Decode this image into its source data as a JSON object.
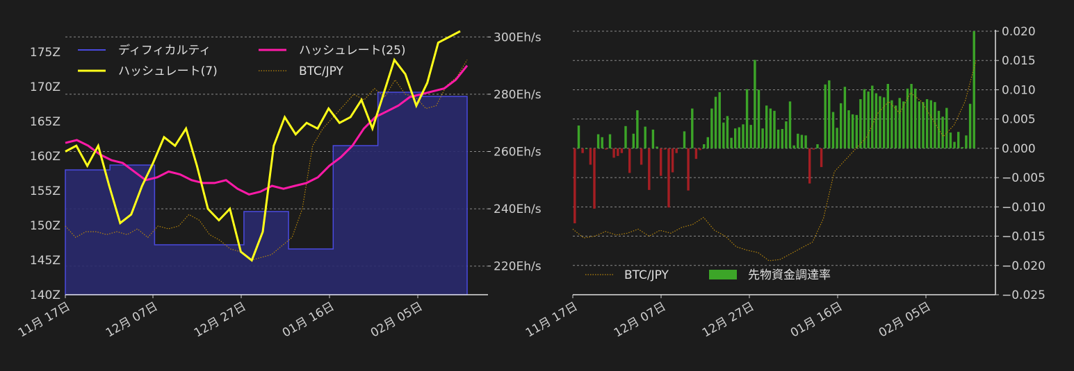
{
  "chart_data": [
    {
      "type": "line",
      "x_ticks": [
        "11月 17日",
        "12月 07日",
        "12月 27日",
        "01月 16日",
        "02月 05日"
      ],
      "y_left_ticks": [
        "140Z",
        "145Z",
        "150Z",
        "155Z",
        "160Z",
        "165Z",
        "170Z",
        "175Z"
      ],
      "y_right_ticks": [
        "220Eh/s",
        "240Eh/s",
        "260Eh/s",
        "280Eh/s",
        "300Eh/s"
      ],
      "ylim_left": [
        140,
        178
      ],
      "ylim_right": [
        210,
        302
      ],
      "legend": [
        {
          "label": "ディフィカルティ",
          "color": "#4a4adf"
        },
        {
          "label": "ハッシュレート(7)",
          "color": "#ffff1a"
        },
        {
          "label": "ハッシュレート(25)",
          "color": "#ff1aa8"
        },
        {
          "label": "BTC/JPY",
          "color": "#b8860b"
        }
      ],
      "series": [
        {
          "name": "ディフィカルティ",
          "axis": "left",
          "values": [
            158.0,
            158.7,
            147.2,
            147.2,
            152.0,
            146.6,
            161.5,
            169.2,
            168.6
          ]
        },
        {
          "name": "ハッシュレート(7)",
          "axis": "right",
          "values": [
            260,
            262,
            255,
            262,
            248,
            235,
            238,
            248,
            256,
            265,
            262,
            268,
            255,
            240,
            236,
            240,
            225,
            222,
            232,
            262,
            272,
            266,
            270,
            268,
            275,
            270,
            272,
            278,
            268,
            280,
            292,
            287,
            276,
            284,
            298,
            300,
            302
          ]
        },
        {
          "name": "ハッシュレート(25)",
          "axis": "right",
          "values": [
            263,
            264,
            262,
            259,
            257,
            256,
            253,
            250,
            251,
            253,
            252,
            250,
            249,
            249,
            250,
            247,
            245,
            246,
            248,
            247,
            248,
            249,
            251,
            255,
            258,
            262,
            268,
            272,
            274,
            276,
            279,
            280,
            281,
            282,
            285,
            290
          ]
        },
        {
          "name": "BTC/JPY",
          "axis": "right",
          "values": [
            234,
            230,
            232,
            232,
            231,
            232,
            231,
            233,
            230,
            234,
            233,
            234,
            238,
            236,
            231,
            229,
            226,
            225,
            222,
            223,
            224,
            227,
            230,
            240,
            262,
            268,
            272,
            276,
            280,
            278,
            282,
            279,
            285,
            280,
            279,
            275,
            276,
            283,
            286,
            292
          ]
        }
      ]
    },
    {
      "type": "bar",
      "x_ticks": [
        "11月 17日",
        "12月 07日",
        "12月 27日",
        "01月 16日",
        "02月 05日"
      ],
      "y_ticks": [
        "0.020",
        "0.015",
        "0.010",
        "0.005",
        "0.000",
        "−0.005",
        "−0.010",
        "−0.015",
        "−0.020",
        "−0.025"
      ],
      "ylim": [
        -0.025,
        0.02
      ],
      "legend": [
        {
          "label": "BTC/JPY",
          "color": "#b8860b"
        },
        {
          "label": "先物資金調達率",
          "color": "#3ca528"
        }
      ],
      "series": [
        {
          "name": "先物資金調達率",
          "values": [
            -0.0128,
            0.0039,
            -0.0008,
            0.0,
            -0.0028,
            -0.0103,
            0.0024,
            0.0019,
            -0.0002,
            0.0024,
            -0.0016,
            -0.0013,
            -0.0008,
            0.0038,
            -0.0042,
            0.0025,
            0.0065,
            -0.0028,
            0.0037,
            -0.0071,
            0.0032,
            0.0003,
            -0.0047,
            -0.0002,
            -0.0101,
            -0.0041,
            -0.0008,
            0.0001,
            0.0029,
            -0.0072,
            0.0068,
            -0.0018,
            -0.0003,
            0.0007,
            0.0019,
            0.0068,
            0.0088,
            0.0096,
            0.0044,
            0.0055,
            0.0018,
            0.0034,
            0.0036,
            0.0041,
            0.0101,
            0.004,
            0.0151,
            0.01,
            0.0034,
            0.0073,
            0.0068,
            0.0064,
            0.0032,
            0.0033,
            0.0046,
            0.008,
            0.0005,
            0.0025,
            0.0023,
            0.0022,
            -0.006,
            -0.0002,
            0.0007,
            -0.0032,
            0.0109,
            0.0116,
            0.0062,
            0.0035,
            0.0077,
            0.0105,
            0.0065,
            0.0058,
            0.0057,
            0.0084,
            0.0101,
            0.0097,
            0.0107,
            0.0094,
            0.0089,
            0.0087,
            0.011,
            0.0082,
            0.0073,
            0.0086,
            0.008,
            0.0102,
            0.011,
            0.0102,
            0.008,
            0.0079,
            0.0084,
            0.0082,
            0.0079,
            0.0064,
            0.0054,
            0.0069,
            0.0027,
            0.0011,
            0.0028,
            0.0002,
            0.0022,
            0.0076,
            0.02
          ]
        },
        {
          "name": "BTC/JPY",
          "values": [
            -0.0138,
            -0.0153,
            -0.015,
            -0.0142,
            -0.0148,
            -0.0145,
            -0.0138,
            -0.015,
            -0.014,
            -0.0145,
            -0.0135,
            -0.013,
            -0.0118,
            -0.014,
            -0.015,
            -0.0168,
            -0.0174,
            -0.0178,
            -0.0192,
            -0.019,
            -0.018,
            -0.017,
            -0.016,
            -0.012,
            -0.004,
            -0.002,
            -0.0,
            0.002,
            0.006,
            0.008,
            0.006,
            0.0095,
            0.008,
            0.005,
            0.002,
            0.004,
            0.008,
            0.015
          ]
        }
      ]
    }
  ]
}
